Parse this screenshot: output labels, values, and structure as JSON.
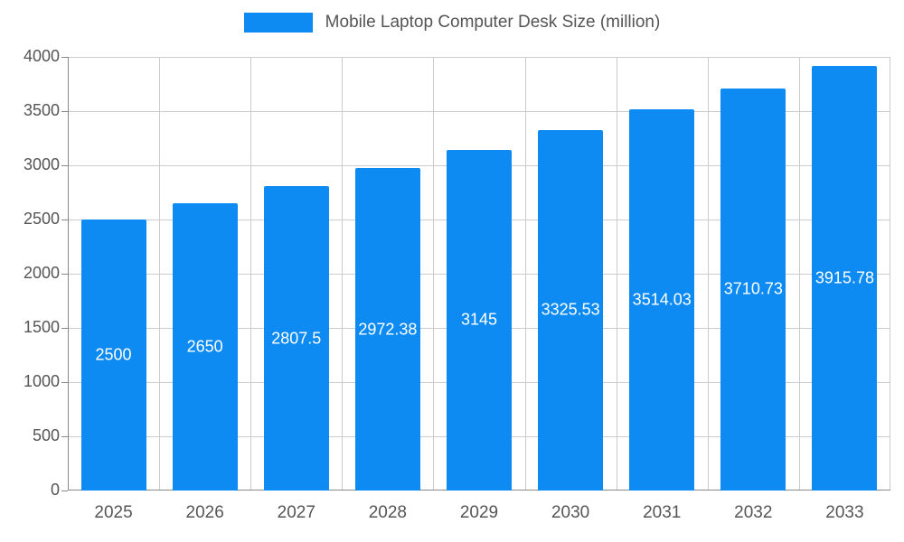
{
  "chart_data": {
    "type": "bar",
    "title": "Mobile Laptop Computer Desk Size (million)",
    "categories": [
      "2025",
      "2026",
      "2027",
      "2028",
      "2029",
      "2030",
      "2031",
      "2032",
      "2033"
    ],
    "values": [
      2500,
      2650,
      2807.5,
      2972.38,
      3145,
      3325.53,
      3514.03,
      3710.73,
      3915.78
    ],
    "value_labels": [
      "2500",
      "2650",
      "2807.5",
      "2972.38",
      "3145",
      "3325.53",
      "3514.03",
      "3710.73",
      "3915.78"
    ],
    "xlabel": "",
    "ylabel": "",
    "ylim": [
      0,
      4000
    ],
    "ytick_step": 500,
    "ytick_labels": [
      "0",
      "500",
      "1000",
      "1500",
      "2000",
      "2500",
      "3000",
      "3500",
      "4000"
    ],
    "grid": true,
    "legend_position": "top-center",
    "bar_color": "#0d8bf2",
    "value_label_color": "#ffffff",
    "axis_text_color": "#555555",
    "grid_color": "#cccccc",
    "axis_line_color": "#888888"
  }
}
